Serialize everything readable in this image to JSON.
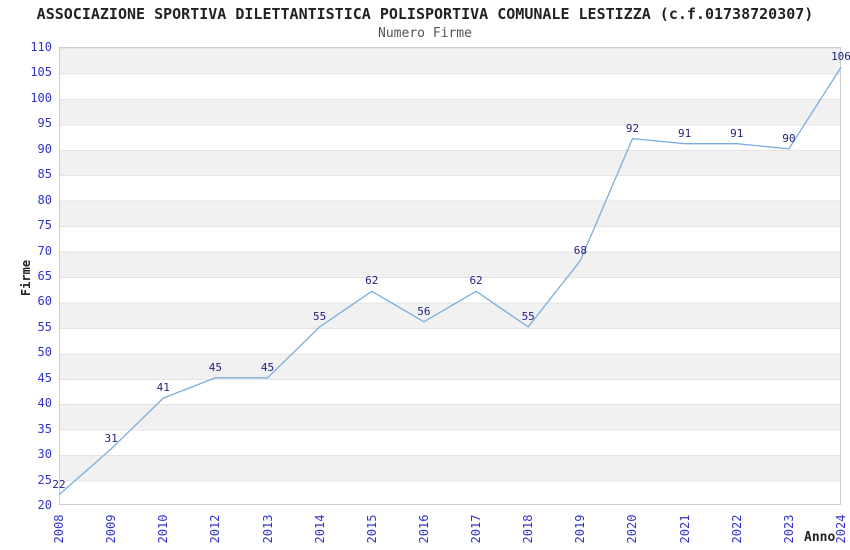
{
  "title": "ASSOCIAZIONE SPORTIVA DILETTANTISTICA POLISPORTIVA COMUNALE LESTIZZA (c.f.01738720307)",
  "subtitle": "Numero Firme",
  "colors": {
    "line": "#7caedd",
    "tick_label": "#3333cc",
    "value_label": "#1f1f80",
    "band_gray": "#f1f1f1",
    "plot_border": "#cccccc",
    "title_color": "#222222",
    "subtitle_color": "#555555"
  },
  "chart_data": {
    "type": "line",
    "title": "ASSOCIAZIONE SPORTIVA DILETTANTISTICA POLISPORTIVA COMUNALE LESTIZZA (c.f.01738720307)",
    "subtitle": "Numero Firme",
    "categories": [
      "2008",
      "2009",
      "2010",
      "2012",
      "2013",
      "2014",
      "2015",
      "2016",
      "2017",
      "2018",
      "2019",
      "2020",
      "2021",
      "2022",
      "2023",
      "2024"
    ],
    "values": [
      22,
      31,
      41,
      45,
      45,
      55,
      62,
      56,
      62,
      55,
      68,
      92,
      91,
      91,
      90,
      106
    ],
    "xlabel": "Anno",
    "ylabel": "Firme",
    "ylim": [
      20,
      110
    ],
    "ytick_step": 5,
    "grid": "horizontal-bands-alternating",
    "legend": "none",
    "data_labels": true
  }
}
